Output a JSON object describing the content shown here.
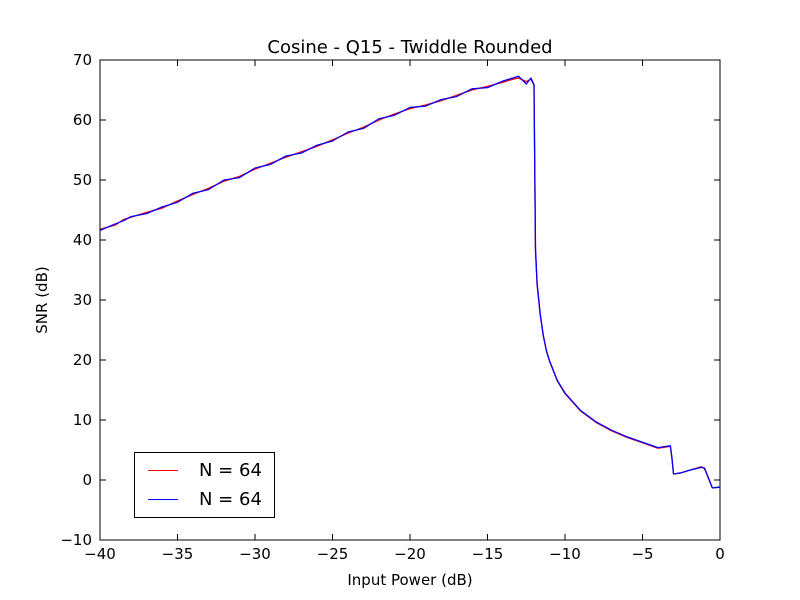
{
  "chart_data": {
    "type": "line",
    "title": "Cosine - Q15 - Twiddle Rounded",
    "xlabel": "Input Power (dB)",
    "ylabel": "SNR (dB)",
    "xlim": [
      -40,
      0
    ],
    "ylim": [
      -10,
      70
    ],
    "xticks": [
      -40,
      -35,
      -30,
      -25,
      -20,
      -15,
      -10,
      -5,
      0
    ],
    "yticks": [
      -10,
      0,
      10,
      20,
      30,
      40,
      50,
      60,
      70
    ],
    "xtick_labels": [
      "−40",
      "−35",
      "−30",
      "−25",
      "−20",
      "−15",
      "−10",
      "−5",
      "0"
    ],
    "ytick_labels": [
      "−10",
      "0",
      "10",
      "20",
      "30",
      "40",
      "50",
      "60",
      "70"
    ],
    "legend_position": "lower-left",
    "series": [
      {
        "name": "N = 64",
        "color": "#ff0000",
        "x": [
          -40,
          -39,
          -38.5,
          -38,
          -37,
          -36,
          -35,
          -34,
          -33,
          -32,
          -31,
          -30,
          -29,
          -28,
          -27,
          -26,
          -25,
          -24,
          -23,
          -22,
          -21,
          -20,
          -19,
          -18,
          -17,
          -16,
          -15,
          -14,
          -13.5,
          -13,
          -12.5,
          -12.2,
          -12,
          -11.9,
          -11.8,
          -11.6,
          -11.4,
          -11.2,
          -11,
          -10.5,
          -10,
          -9,
          -8,
          -7,
          -6,
          -5,
          -4,
          -3.2,
          -3.1,
          -3,
          -2.5,
          -2,
          -1.2,
          -1,
          -0.5,
          0
        ],
        "y": [
          41.8,
          42.5,
          43.4,
          43.8,
          44.6,
          45.3,
          46.5,
          47.6,
          48.6,
          49.8,
          50.6,
          51.8,
          52.8,
          53.8,
          54.7,
          55.6,
          56.7,
          57.8,
          58.8,
          60.0,
          61.0,
          61.9,
          62.5,
          63.2,
          64.1,
          65.0,
          65.6,
          66.3,
          66.7,
          67.0,
          66.4,
          66.8,
          65.8,
          38.0,
          32.5,
          27.5,
          24.0,
          21.5,
          19.8,
          16.5,
          14.4,
          11.5,
          9.6,
          8.2,
          7.1,
          6.2,
          5.3,
          5.6,
          3.5,
          1.0,
          1.2,
          1.6,
          2.2,
          1.9,
          -1.3,
          -1.2
        ]
      },
      {
        "name": "N = 64",
        "color": "#0000ff",
        "x": [
          -40,
          -39,
          -38.5,
          -38,
          -37,
          -36,
          -35,
          -34,
          -33,
          -32,
          -31,
          -30,
          -29,
          -28,
          -27,
          -26,
          -25,
          -24,
          -23,
          -22,
          -21,
          -20,
          -19,
          -18,
          -17,
          -16,
          -15,
          -14,
          -13.5,
          -13,
          -12.5,
          -12.2,
          -12,
          -11.9,
          -11.8,
          -11.6,
          -11.4,
          -11.2,
          -11,
          -10.5,
          -10,
          -9,
          -8,
          -7,
          -6,
          -5,
          -4,
          -3.2,
          -3.1,
          -3,
          -2.5,
          -2,
          -1.2,
          -1,
          -0.5,
          0
        ],
        "y": [
          41.6,
          42.7,
          43.2,
          43.9,
          44.4,
          45.5,
          46.3,
          47.8,
          48.4,
          50.0,
          50.4,
          52.0,
          52.6,
          54.0,
          54.5,
          55.8,
          56.5,
          58.0,
          58.6,
          60.2,
          60.8,
          62.1,
          62.3,
          63.4,
          63.9,
          65.2,
          65.4,
          66.5,
          66.9,
          67.3,
          66.0,
          67.0,
          65.9,
          38.6,
          32.8,
          27.7,
          24.1,
          21.6,
          19.9,
          16.6,
          14.5,
          11.6,
          9.7,
          8.3,
          7.2,
          6.3,
          5.4,
          5.7,
          3.6,
          1.0,
          1.2,
          1.6,
          2.1,
          2.0,
          -1.3,
          -1.2
        ]
      }
    ]
  }
}
